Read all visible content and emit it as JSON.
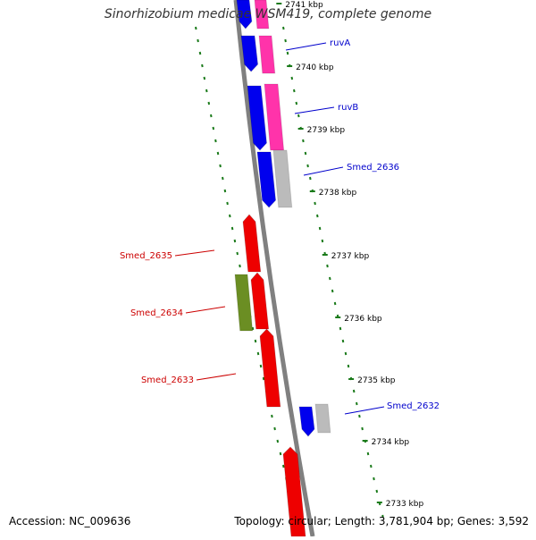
{
  "title": "Sinorhizobium medicae WSM419, complete genome",
  "footer": {
    "accession": "Accession: NC_009636",
    "topology": "Topology: circular; Length: 3,781,904 bp; Genes: 3,592"
  },
  "colors": {
    "forward_strand": "#0000ee",
    "reverse_strand": "#ee0000",
    "cog_pink": "#ff33aa",
    "cog_green": "#6b8e23",
    "cog_gray": "#bbbbbb",
    "backbone": "#808080",
    "ticks": "#1a7a1a",
    "forward_label": "#0000cc",
    "reverse_label": "#cc0000"
  },
  "scale_labels": [
    "2741 kbp",
    "2740 kbp",
    "2739 kbp",
    "2738 kbp",
    "2737 kbp",
    "2736 kbp",
    "2735 kbp",
    "2734 kbp",
    "2733 kbp"
  ],
  "genes": [
    {
      "id": "g1",
      "strand": "forward",
      "cog": "pink"
    },
    {
      "id": "ruvA",
      "label": "ruvA",
      "strand": "forward",
      "cog": "pink"
    },
    {
      "id": "ruvB",
      "label": "ruvB",
      "strand": "forward",
      "cog": "pink"
    },
    {
      "id": "Smed_2636",
      "label": "Smed_2636",
      "strand": "forward",
      "cog": "gray"
    },
    {
      "id": "Smed_2635",
      "label": "Smed_2635",
      "strand": "reverse",
      "cog": "none"
    },
    {
      "id": "Smed_2634",
      "label": "Smed_2634",
      "strand": "reverse",
      "cog": "green"
    },
    {
      "id": "Smed_2633",
      "label": "Smed_2633",
      "strand": "reverse",
      "cog": "none"
    },
    {
      "id": "Smed_2632",
      "label": "Smed_2632",
      "strand": "forward",
      "cog": "gray"
    },
    {
      "id": "g_last",
      "strand": "reverse",
      "cog": "none"
    }
  ]
}
